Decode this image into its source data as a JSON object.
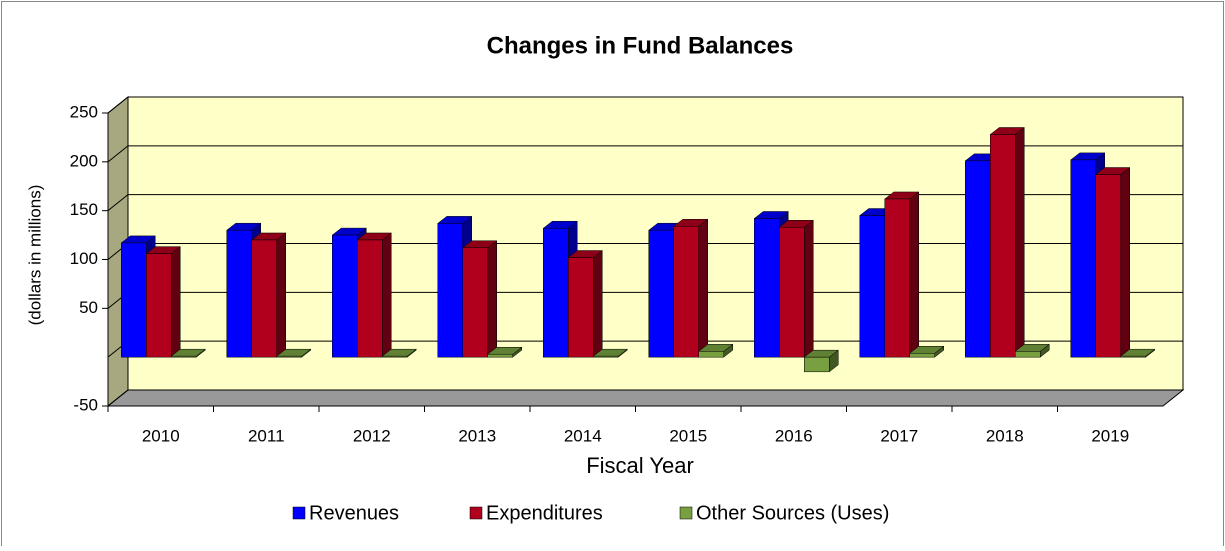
{
  "chart_data": {
    "type": "bar3d",
    "title": "Changes in Fund Balances",
    "x_label": "Fiscal Year",
    "y_label": "(dollars in millions)",
    "categories": [
      "2010",
      "2011",
      "2012",
      "2013",
      "2014",
      "2015",
      "2016",
      "2017",
      "2018",
      "2019"
    ],
    "series": [
      {
        "name": "Revenues",
        "color": "#0000ff",
        "values": [
          117,
          130,
          125,
          137,
          132,
          130,
          142,
          145,
          201,
          202
        ]
      },
      {
        "name": "Expenditures",
        "color": "#b0001e",
        "values": [
          106,
          120,
          120,
          112,
          102,
          134,
          133,
          162,
          228,
          187
        ]
      },
      {
        "name": "Other Sources (Uses)",
        "color": "#78a040",
        "values": [
          1,
          1,
          1,
          3,
          1,
          6,
          -15,
          4,
          6,
          1
        ]
      }
    ],
    "ylim": [
      -50,
      250
    ],
    "yticks": [
      -50,
      50,
      100,
      150,
      200,
      250
    ],
    "grid": true,
    "legend": "bottom"
  }
}
